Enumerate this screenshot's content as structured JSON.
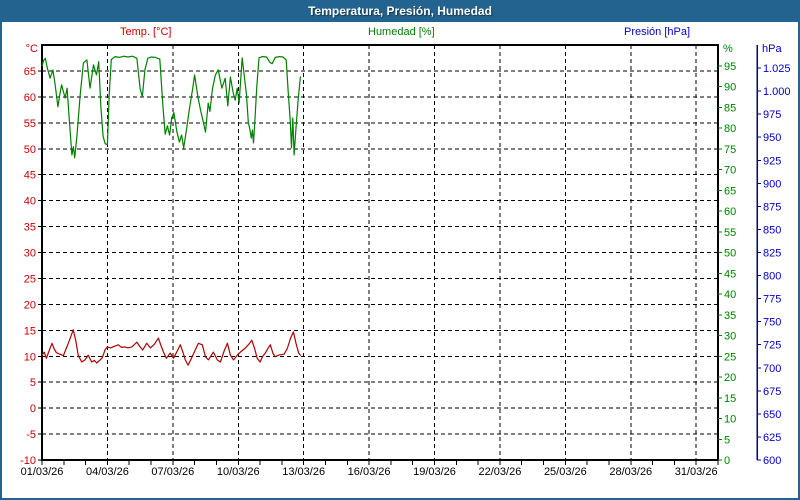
{
  "window": {
    "title": "Temperatura, Presión, Humedad"
  },
  "legend": {
    "temperature": "Temp. [°C]",
    "humidity": "Humedad [%]",
    "pressure": "Presión [hPa]"
  },
  "colors": {
    "titlebar": "#23638F",
    "frame": "#23638F",
    "background": "#FFFFFF",
    "grid": "#000000",
    "temperature_label": "#CC0000",
    "temperature_line": "#B00000",
    "humidity_label": "#008000",
    "humidity_line": "#008000",
    "pressure_label": "#0000CC",
    "pressure_axis": "#00008B",
    "date_label": "#000000"
  },
  "chart_data": {
    "type": "line",
    "title": "Temperatura, Presión, Humedad",
    "x_axis": {
      "range_days": [
        0,
        31
      ],
      "tick_days": [
        0,
        3,
        6,
        9,
        12,
        15,
        18,
        21,
        24,
        27,
        30
      ],
      "tick_labels": [
        "01/03/26",
        "04/03/26",
        "07/03/26",
        "10/03/26",
        "13/03/26",
        "16/03/26",
        "19/03/26",
        "22/03/26",
        "25/03/26",
        "28/03/26",
        "31/03/26"
      ],
      "minor_tick_step_days": 1
    },
    "y_axes": {
      "temperature": {
        "unit": "°C",
        "side": "left",
        "range": [
          -10,
          70
        ],
        "tick_step": 5,
        "tick_values": [
          -10,
          -5,
          0,
          5,
          10,
          15,
          20,
          25,
          30,
          35,
          40,
          45,
          50,
          55,
          60,
          65
        ],
        "tick_labels": [
          "-10",
          "-5",
          "0",
          "5",
          "10",
          "15",
          "20",
          "25",
          "30",
          "35",
          "40",
          "45",
          "50",
          "55",
          "60",
          "65"
        ]
      },
      "humidity": {
        "unit": "%",
        "side": "right",
        "range": [
          0,
          100
        ],
        "tick_step": 5,
        "tick_values": [
          0,
          5,
          10,
          15,
          20,
          25,
          30,
          35,
          40,
          45,
          50,
          55,
          60,
          65,
          70,
          75,
          80,
          85,
          90,
          95
        ],
        "tick_labels": [
          "0",
          "5",
          "10",
          "15",
          "20",
          "25",
          "30",
          "35",
          "40",
          "45",
          "50",
          "55",
          "60",
          "65",
          "70",
          "75",
          "80",
          "85",
          "90",
          "95"
        ]
      },
      "pressure": {
        "unit": "hPa",
        "side": "right-outer",
        "range": [
          600,
          1050
        ],
        "tick_step": 25,
        "tick_values": [
          600,
          625,
          650,
          675,
          700,
          725,
          750,
          775,
          800,
          825,
          850,
          875,
          900,
          925,
          950,
          975,
          1000,
          1025
        ],
        "tick_labels": [
          "600",
          "625",
          "650",
          "675",
          "700",
          "725",
          "750",
          "775",
          "800",
          "825",
          "850",
          "875",
          "900",
          "925",
          "950",
          "975",
          "1.000",
          "1.025"
        ]
      }
    },
    "series": [
      {
        "name": "Temp. [°C]",
        "axis": "temperature",
        "color": "#B00000",
        "points": [
          [
            0,
            10.2
          ],
          [
            0.1,
            10.8
          ],
          [
            0.2,
            9.6
          ],
          [
            0.32,
            11.0
          ],
          [
            0.46,
            12.5
          ],
          [
            0.56,
            11.4
          ],
          [
            0.66,
            10.7
          ],
          [
            0.76,
            10.5
          ],
          [
            0.88,
            10.3
          ],
          [
            0.98,
            10.1
          ],
          [
            1.1,
            11.4
          ],
          [
            1.25,
            13.0
          ],
          [
            1.43,
            15.1
          ],
          [
            1.55,
            13.0
          ],
          [
            1.66,
            10.2
          ],
          [
            1.82,
            8.9
          ],
          [
            1.97,
            9.3
          ],
          [
            2.12,
            10.2
          ],
          [
            2.28,
            8.9
          ],
          [
            2.4,
            9.2
          ],
          [
            2.51,
            8.7
          ],
          [
            2.64,
            9.2
          ],
          [
            2.76,
            9.7
          ],
          [
            2.9,
            11.3
          ],
          [
            3.0,
            11.8
          ],
          [
            3.15,
            11.6
          ],
          [
            3.3,
            11.9
          ],
          [
            3.5,
            12.2
          ],
          [
            3.65,
            11.7
          ],
          [
            3.8,
            11.8
          ],
          [
            3.95,
            11.6
          ],
          [
            4.12,
            11.8
          ],
          [
            4.35,
            12.7
          ],
          [
            4.5,
            11.8
          ],
          [
            4.62,
            11.2
          ],
          [
            4.8,
            12.5
          ],
          [
            4.97,
            11.6
          ],
          [
            5.15,
            12.3
          ],
          [
            5.34,
            13.5
          ],
          [
            5.46,
            12.0
          ],
          [
            5.57,
            10.8
          ],
          [
            5.7,
            9.6
          ],
          [
            5.88,
            10.6
          ],
          [
            6.03,
            9.6
          ],
          [
            6.2,
            11.0
          ],
          [
            6.34,
            12.2
          ],
          [
            6.46,
            10.8
          ],
          [
            6.57,
            9.3
          ],
          [
            6.7,
            8.3
          ],
          [
            6.84,
            9.5
          ],
          [
            6.96,
            10.6
          ],
          [
            7.17,
            12.5
          ],
          [
            7.35,
            12.2
          ],
          [
            7.5,
            9.9
          ],
          [
            7.63,
            9.3
          ],
          [
            7.86,
            10.8
          ],
          [
            8.04,
            9.3
          ],
          [
            8.18,
            8.9
          ],
          [
            8.35,
            11.0
          ],
          [
            8.5,
            12.5
          ],
          [
            8.64,
            10.2
          ],
          [
            8.78,
            9.3
          ],
          [
            8.95,
            10.2
          ],
          [
            9.1,
            10.8
          ],
          [
            9.3,
            11.5
          ],
          [
            9.5,
            12.4
          ],
          [
            9.62,
            13.1
          ],
          [
            9.75,
            11.5
          ],
          [
            9.87,
            9.6
          ],
          [
            10.0,
            8.9
          ],
          [
            10.12,
            10.0
          ],
          [
            10.24,
            10.6
          ],
          [
            10.36,
            11.5
          ],
          [
            10.47,
            12.2
          ],
          [
            10.6,
            10.5
          ],
          [
            10.7,
            9.9
          ],
          [
            10.84,
            10.2
          ],
          [
            10.95,
            10.3
          ],
          [
            11.1,
            10.4
          ],
          [
            11.25,
            11.5
          ],
          [
            11.4,
            13.5
          ],
          [
            11.53,
            14.7
          ],
          [
            11.65,
            12.5
          ],
          [
            11.77,
            10.6
          ],
          [
            11.85,
            10.2
          ]
        ]
      },
      {
        "name": "Humedad [%]",
        "axis": "humidity",
        "color": "#008000",
        "points": [
          [
            0,
            95.0
          ],
          [
            0.08,
            96.3
          ],
          [
            0.15,
            96.8
          ],
          [
            0.25,
            94.3
          ],
          [
            0.37,
            92.0
          ],
          [
            0.5,
            94.0
          ],
          [
            0.6,
            90.5
          ],
          [
            0.73,
            85.1
          ],
          [
            0.82,
            88.2
          ],
          [
            0.9,
            90.4
          ],
          [
            1.0,
            88.4
          ],
          [
            1.06,
            87.2
          ],
          [
            1.15,
            89.6
          ],
          [
            1.25,
            82.0
          ],
          [
            1.37,
            73.5
          ],
          [
            1.44,
            75.5
          ],
          [
            1.5,
            72.8
          ],
          [
            1.6,
            78.0
          ],
          [
            1.75,
            88.0
          ],
          [
            1.9,
            95.7
          ],
          [
            2.06,
            96.4
          ],
          [
            2.2,
            89.6
          ],
          [
            2.36,
            95.2
          ],
          [
            2.5,
            92.8
          ],
          [
            2.6,
            96.0
          ],
          [
            2.7,
            85.0
          ],
          [
            2.8,
            78.0
          ],
          [
            2.9,
            76.2
          ],
          [
            3.0,
            76.0
          ],
          [
            3.08,
            88.0
          ],
          [
            3.18,
            96.5
          ],
          [
            3.35,
            97.2
          ],
          [
            3.55,
            97.0
          ],
          [
            3.75,
            97.3
          ],
          [
            3.95,
            97.1
          ],
          [
            4.15,
            97.3
          ],
          [
            4.35,
            96.8
          ],
          [
            4.5,
            89.5
          ],
          [
            4.6,
            87.5
          ],
          [
            4.72,
            94.0
          ],
          [
            4.85,
            96.8
          ],
          [
            5.0,
            97.1
          ],
          [
            5.2,
            97.0
          ],
          [
            5.4,
            96.6
          ],
          [
            5.55,
            85.0
          ],
          [
            5.65,
            78.5
          ],
          [
            5.75,
            80.5
          ],
          [
            5.85,
            78.3
          ],
          [
            5.95,
            82.4
          ],
          [
            6.05,
            83.7
          ],
          [
            6.18,
            79.2
          ],
          [
            6.3,
            76.6
          ],
          [
            6.4,
            78.3
          ],
          [
            6.5,
            75.2
          ],
          [
            6.62,
            79.5
          ],
          [
            6.75,
            84.3
          ],
          [
            6.9,
            89.2
          ],
          [
            7.0,
            92.8
          ],
          [
            7.15,
            87.5
          ],
          [
            7.28,
            84.0
          ],
          [
            7.4,
            81.4
          ],
          [
            7.5,
            79.0
          ],
          [
            7.62,
            86.0
          ],
          [
            7.7,
            84.0
          ],
          [
            7.82,
            89.5
          ],
          [
            7.95,
            92.8
          ],
          [
            8.08,
            94.0
          ],
          [
            8.25,
            89.6
          ],
          [
            8.4,
            92.0
          ],
          [
            8.52,
            85.3
          ],
          [
            8.64,
            92.3
          ],
          [
            8.76,
            88.7
          ],
          [
            8.86,
            86.7
          ],
          [
            8.95,
            89.6
          ],
          [
            9.04,
            86.0
          ],
          [
            9.18,
            96.9
          ],
          [
            9.3,
            91.5
          ],
          [
            9.38,
            88.0
          ],
          [
            9.46,
            81.4
          ],
          [
            9.54,
            79.5
          ],
          [
            9.6,
            77.6
          ],
          [
            9.65,
            79.5
          ],
          [
            9.7,
            76.4
          ],
          [
            9.76,
            81.4
          ],
          [
            9.85,
            90.0
          ],
          [
            9.95,
            96.9
          ],
          [
            10.1,
            97.2
          ],
          [
            10.3,
            97.1
          ],
          [
            10.45,
            95.8
          ],
          [
            10.55,
            95.5
          ],
          [
            10.7,
            97.0
          ],
          [
            10.9,
            97.2
          ],
          [
            11.05,
            97.1
          ],
          [
            11.2,
            96.4
          ],
          [
            11.3,
            88.0
          ],
          [
            11.38,
            81.9
          ],
          [
            11.44,
            75.2
          ],
          [
            11.5,
            82.4
          ],
          [
            11.56,
            73.5
          ],
          [
            11.65,
            80.0
          ],
          [
            11.75,
            87.0
          ],
          [
            11.85,
            92.3
          ]
        ]
      },
      {
        "name": "Presión [hPa]",
        "axis": "pressure",
        "color": "#0000CC",
        "points": []
      }
    ]
  }
}
